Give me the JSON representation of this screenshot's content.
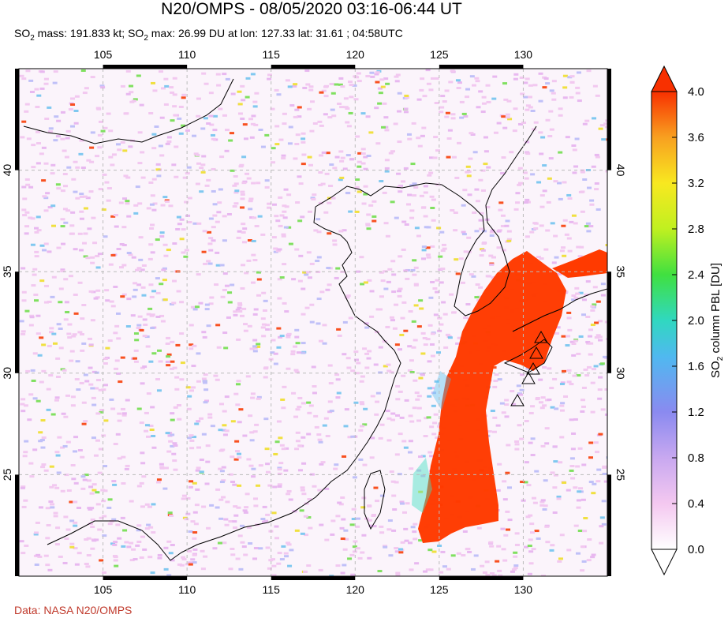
{
  "header": {
    "title": "N20/OMPS - 08/05/2020 03:16-06:44 UT",
    "subtitle_parts": {
      "so2_mass_prefix": "SO",
      "sub2": "2",
      "so2_mass_text": " mass: 191.833 kt; SO",
      "so2_max_text": " max: 26.99 DU at lon: 127.33 lat: 31.61 ; 04:58UTC"
    }
  },
  "footer": {
    "credit": "Data: NASA N20/OMPS"
  },
  "map": {
    "lon_range": [
      100,
      135
    ],
    "lat_range": [
      20,
      45
    ],
    "lon_ticks": [
      "105",
      "110",
      "115",
      "120",
      "125",
      "130"
    ],
    "lat_ticks": [
      "40",
      "35",
      "30",
      "25"
    ],
    "plume_color": "#ff3a00"
  },
  "colorbar": {
    "title_prefix": "SO",
    "title_sub": "2",
    "title_suffix": " column PBL [DU]",
    "ticks": [
      "4.0",
      "3.6",
      "3.2",
      "2.8",
      "2.4",
      "2.0",
      "1.6",
      "1.2",
      "0.8",
      "0.4",
      "0.0"
    ],
    "colors": [
      "#ffffff",
      "#f4c8f0",
      "#c8a8f0",
      "#8a8af0",
      "#50b8f0",
      "#30d8c0",
      "#40e040",
      "#c0f020",
      "#f8e820",
      "#f8a020",
      "#f85010",
      "#f83000"
    ]
  }
}
